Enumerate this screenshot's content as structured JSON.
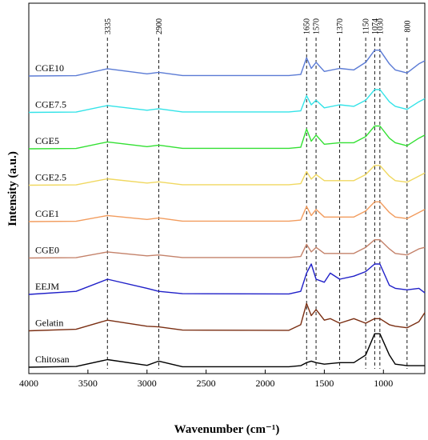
{
  "chart_data": {
    "type": "line",
    "xlabel": "Wavenumber (cm⁻¹)",
    "ylabel": "Intensity (a.u.)",
    "xlim": [
      4000,
      650
    ],
    "x_reversed": true,
    "x_ticks": [
      4000,
      3500,
      3000,
      2500,
      2000,
      1500,
      1000
    ],
    "grid": false,
    "reference_lines": [
      3335,
      2900,
      1650,
      1570,
      1370,
      1150,
      1074,
      1030,
      800
    ],
    "reference_labels": [
      "3335",
      "2900",
      "1650",
      "1570",
      "1370",
      "1150",
      "1074",
      "1030",
      "800"
    ],
    "series": [
      {
        "name": "CGE10",
        "color": "#5b7bd5"
      },
      {
        "name": "CGE7.5",
        "color": "#33e3e8"
      },
      {
        "name": "CGE5",
        "color": "#33e033"
      },
      {
        "name": "CGE2.5",
        "color": "#f0d860"
      },
      {
        "name": "CGE1",
        "color": "#f29c5e"
      },
      {
        "name": "CGE0",
        "color": "#c4826a"
      },
      {
        "name": "EEJM",
        "color": "#1f1fc8"
      },
      {
        "name": "Gelatin",
        "color": "#7a2e12"
      },
      {
        "name": "Chitosan",
        "color": "#000000"
      }
    ],
    "spectral_profiles": {
      "CGE10": [
        [
          4000,
          0
        ],
        [
          3600,
          0.2
        ],
        [
          3335,
          4.8
        ],
        [
          3000,
          1.4
        ],
        [
          2900,
          2.4
        ],
        [
          2700,
          0.3
        ],
        [
          1800,
          0.3
        ],
        [
          1700,
          1
        ],
        [
          1650,
          12
        ],
        [
          1610,
          5
        ],
        [
          1570,
          9
        ],
        [
          1500,
          3
        ],
        [
          1370,
          5
        ],
        [
          1250,
          4
        ],
        [
          1150,
          9
        ],
        [
          1074,
          17
        ],
        [
          1030,
          17
        ],
        [
          950,
          8
        ],
        [
          900,
          4
        ],
        [
          800,
          2
        ],
        [
          700,
          8
        ],
        [
          650,
          10
        ]
      ],
      "CGE7.5": [
        [
          4000,
          0
        ],
        [
          3600,
          0.2
        ],
        [
          3335,
          4.5
        ],
        [
          3000,
          1.4
        ],
        [
          2900,
          2.4
        ],
        [
          2700,
          0.3
        ],
        [
          1800,
          0.3
        ],
        [
          1700,
          1
        ],
        [
          1650,
          11
        ],
        [
          1610,
          5
        ],
        [
          1570,
          8
        ],
        [
          1500,
          3
        ],
        [
          1370,
          5
        ],
        [
          1250,
          4
        ],
        [
          1150,
          8
        ],
        [
          1074,
          15
        ],
        [
          1030,
          15
        ],
        [
          950,
          7
        ],
        [
          900,
          4
        ],
        [
          800,
          2
        ],
        [
          700,
          7
        ],
        [
          650,
          9
        ]
      ],
      "CGE5": [
        [
          4000,
          0
        ],
        [
          3600,
          0.2
        ],
        [
          3335,
          4.5
        ],
        [
          3000,
          1.4
        ],
        [
          2900,
          2.4
        ],
        [
          2700,
          0.3
        ],
        [
          1800,
          0.3
        ],
        [
          1700,
          1
        ],
        [
          1650,
          13
        ],
        [
          1610,
          5
        ],
        [
          1570,
          9
        ],
        [
          1500,
          3
        ],
        [
          1370,
          4
        ],
        [
          1250,
          4
        ],
        [
          1150,
          8
        ],
        [
          1074,
          15
        ],
        [
          1030,
          15
        ],
        [
          950,
          7
        ],
        [
          900,
          4
        ],
        [
          800,
          2
        ],
        [
          700,
          7
        ],
        [
          650,
          9
        ]
      ],
      "CGE2.5": [
        [
          4000,
          0
        ],
        [
          3600,
          0.2
        ],
        [
          3335,
          4.2
        ],
        [
          3000,
          1.4
        ],
        [
          2900,
          2.2
        ],
        [
          2700,
          0.3
        ],
        [
          1800,
          0.3
        ],
        [
          1700,
          1
        ],
        [
          1650,
          9
        ],
        [
          1610,
          4
        ],
        [
          1570,
          7
        ],
        [
          1500,
          3
        ],
        [
          1370,
          3
        ],
        [
          1250,
          3
        ],
        [
          1150,
          7
        ],
        [
          1074,
          13
        ],
        [
          1030,
          13
        ],
        [
          950,
          6
        ],
        [
          900,
          3
        ],
        [
          800,
          2
        ],
        [
          700,
          6
        ],
        [
          650,
          8
        ]
      ],
      "CGE1": [
        [
          4000,
          0
        ],
        [
          3600,
          0.2
        ],
        [
          3335,
          4
        ],
        [
          3000,
          1.4
        ],
        [
          2900,
          2.4
        ],
        [
          2700,
          0.3
        ],
        [
          1800,
          0.3
        ],
        [
          1700,
          1
        ],
        [
          1650,
          10
        ],
        [
          1610,
          4
        ],
        [
          1570,
          8
        ],
        [
          1500,
          3
        ],
        [
          1370,
          3
        ],
        [
          1250,
          3
        ],
        [
          1150,
          7
        ],
        [
          1074,
          13
        ],
        [
          1030,
          13
        ],
        [
          950,
          6
        ],
        [
          900,
          3
        ],
        [
          800,
          2
        ],
        [
          700,
          6
        ],
        [
          650,
          8
        ]
      ],
      "CGE0": [
        [
          4000,
          0
        ],
        [
          3600,
          0.2
        ],
        [
          3335,
          4
        ],
        [
          3000,
          1.4
        ],
        [
          2900,
          2
        ],
        [
          2700,
          0.3
        ],
        [
          1800,
          0.3
        ],
        [
          1700,
          1
        ],
        [
          1650,
          9
        ],
        [
          1610,
          4
        ],
        [
          1570,
          7
        ],
        [
          1500,
          3
        ],
        [
          1370,
          3
        ],
        [
          1250,
          3
        ],
        [
          1150,
          7
        ],
        [
          1074,
          12
        ],
        [
          1030,
          12
        ],
        [
          950,
          6
        ],
        [
          900,
          3
        ],
        [
          800,
          2
        ],
        [
          700,
          6
        ],
        [
          650,
          7
        ]
      ],
      "EEJM": [
        [
          4000,
          0
        ],
        [
          3600,
          2
        ],
        [
          3335,
          10
        ],
        [
          3000,
          4
        ],
        [
          2900,
          2
        ],
        [
          2700,
          0.5
        ],
        [
          1800,
          0.3
        ],
        [
          1700,
          2
        ],
        [
          1650,
          14
        ],
        [
          1610,
          20
        ],
        [
          1570,
          10
        ],
        [
          1500,
          8
        ],
        [
          1450,
          14
        ],
        [
          1370,
          10
        ],
        [
          1250,
          12
        ],
        [
          1150,
          15
        ],
        [
          1074,
          20
        ],
        [
          1030,
          20
        ],
        [
          950,
          6
        ],
        [
          900,
          4
        ],
        [
          800,
          3
        ],
        [
          700,
          4
        ],
        [
          650,
          1
        ]
      ],
      "Gelatin": [
        [
          4000,
          0
        ],
        [
          3600,
          1
        ],
        [
          3335,
          7
        ],
        [
          3000,
          3
        ],
        [
          2900,
          2.6
        ],
        [
          2700,
          0.5
        ],
        [
          1800,
          0.3
        ],
        [
          1700,
          4
        ],
        [
          1650,
          18
        ],
        [
          1610,
          10
        ],
        [
          1570,
          14
        ],
        [
          1500,
          7
        ],
        [
          1450,
          8
        ],
        [
          1370,
          5
        ],
        [
          1250,
          8
        ],
        [
          1150,
          5
        ],
        [
          1074,
          8
        ],
        [
          1030,
          8
        ],
        [
          950,
          4
        ],
        [
          900,
          3
        ],
        [
          800,
          2
        ],
        [
          700,
          6
        ],
        [
          650,
          12
        ]
      ],
      "Chitosan": [
        [
          4000,
          0
        ],
        [
          3600,
          0.5
        ],
        [
          3335,
          5
        ],
        [
          3000,
          1.2
        ],
        [
          2900,
          4
        ],
        [
          2700,
          0.3
        ],
        [
          1800,
          0.3
        ],
        [
          1700,
          1
        ],
        [
          1650,
          3
        ],
        [
          1610,
          4
        ],
        [
          1570,
          3
        ],
        [
          1500,
          2
        ],
        [
          1370,
          3
        ],
        [
          1250,
          3
        ],
        [
          1150,
          8
        ],
        [
          1074,
          22
        ],
        [
          1030,
          22
        ],
        [
          950,
          8
        ],
        [
          900,
          2
        ],
        [
          800,
          1
        ],
        [
          700,
          1
        ],
        [
          650,
          1
        ]
      ]
    }
  }
}
